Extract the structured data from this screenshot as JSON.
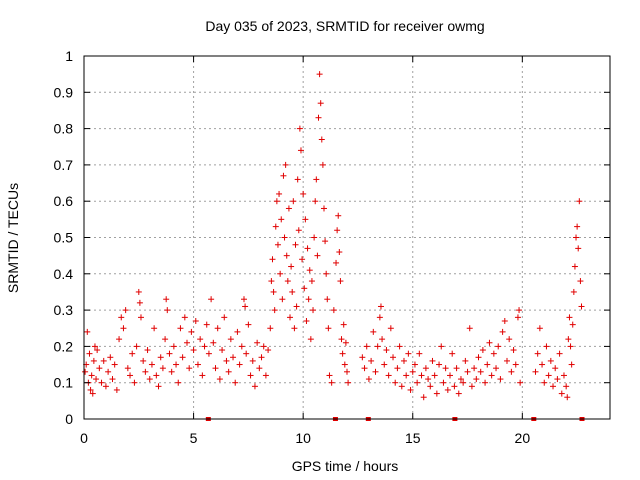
{
  "colors": {
    "series": "#e00000",
    "axis": "#000000",
    "grid": "#a0a0a0",
    "background": "#ffffff"
  },
  "chart_data": {
    "type": "scatter",
    "title": "Day 035 of 2023, SRMTID for receiver owmg",
    "xlabel": "GPS time / hours",
    "ylabel": "SRMTID / TECUs",
    "xlim": [
      0,
      24
    ],
    "ylim": [
      0,
      1
    ],
    "xticks": [
      0,
      5,
      10,
      15,
      20
    ],
    "xtick_labels": [
      "0",
      "5",
      "10",
      "15",
      "20"
    ],
    "yticks": [
      0,
      0.1,
      0.2,
      0.3,
      0.4,
      0.5,
      0.6,
      0.7,
      0.8,
      0.9,
      1
    ],
    "ytick_labels": [
      "0",
      "0.1",
      "0.2",
      "0.3",
      "0.4",
      "0.5",
      "0.6",
      "0.7",
      "0.8",
      "0.9",
      "1"
    ],
    "grid": true,
    "marker": "plus",
    "series": [
      {
        "name": "SRMTID",
        "points": [
          [
            0.05,
            0.13
          ],
          [
            0.1,
            0.15
          ],
          [
            0.15,
            0.24
          ],
          [
            0.2,
            0.1
          ],
          [
            0.25,
            0.18
          ],
          [
            0.3,
            0.08
          ],
          [
            0.35,
            0.12
          ],
          [
            0.4,
            0.07
          ],
          [
            0.45,
            0.16
          ],
          [
            0.5,
            0.2
          ],
          [
            0.55,
            0.11
          ],
          [
            0.6,
            0.19
          ],
          [
            0.7,
            0.14
          ],
          [
            0.8,
            0.1
          ],
          [
            0.9,
            0.16
          ],
          [
            1.0,
            0.09
          ],
          [
            1.1,
            0.13
          ],
          [
            1.2,
            0.17
          ],
          [
            1.3,
            0.11
          ],
          [
            1.4,
            0.15
          ],
          [
            1.5,
            0.08
          ],
          [
            1.6,
            0.22
          ],
          [
            1.7,
            0.28
          ],
          [
            1.8,
            0.25
          ],
          [
            1.9,
            0.3
          ],
          [
            2.0,
            0.14
          ],
          [
            2.1,
            0.12
          ],
          [
            2.2,
            0.18
          ],
          [
            2.3,
            0.1
          ],
          [
            2.4,
            0.2
          ],
          [
            2.5,
            0.35
          ],
          [
            2.55,
            0.32
          ],
          [
            2.6,
            0.28
          ],
          [
            2.7,
            0.16
          ],
          [
            2.8,
            0.13
          ],
          [
            2.9,
            0.19
          ],
          [
            3.0,
            0.11
          ],
          [
            3.1,
            0.15
          ],
          [
            3.2,
            0.25
          ],
          [
            3.3,
            0.12
          ],
          [
            3.4,
            0.09
          ],
          [
            3.5,
            0.17
          ],
          [
            3.6,
            0.14
          ],
          [
            3.7,
            0.22
          ],
          [
            3.75,
            0.33
          ],
          [
            3.8,
            0.3
          ],
          [
            3.9,
            0.18
          ],
          [
            4.0,
            0.13
          ],
          [
            4.1,
            0.2
          ],
          [
            4.2,
            0.15
          ],
          [
            4.3,
            0.1
          ],
          [
            4.4,
            0.25
          ],
          [
            4.5,
            0.17
          ],
          [
            4.6,
            0.28
          ],
          [
            4.7,
            0.21
          ],
          [
            4.8,
            0.14
          ],
          [
            4.9,
            0.24
          ],
          [
            5.0,
            0.19
          ],
          [
            5.1,
            0.27
          ],
          [
            5.2,
            0.15
          ],
          [
            5.3,
            0.22
          ],
          [
            5.4,
            0.12
          ],
          [
            5.5,
            0.2
          ],
          [
            5.6,
            0.26
          ],
          [
            5.7,
            0.18
          ],
          [
            5.8,
            0.33
          ],
          [
            5.9,
            0.21
          ],
          [
            6.0,
            0.14
          ],
          [
            6.1,
            0.25
          ],
          [
            6.2,
            0.11
          ],
          [
            6.3,
            0.19
          ],
          [
            6.4,
            0.28
          ],
          [
            6.5,
            0.16
          ],
          [
            6.6,
            0.13
          ],
          [
            6.7,
            0.22
          ],
          [
            6.8,
            0.17
          ],
          [
            6.9,
            0.1
          ],
          [
            7.0,
            0.24
          ],
          [
            7.1,
            0.15
          ],
          [
            7.2,
            0.2
          ],
          [
            7.3,
            0.33
          ],
          [
            7.35,
            0.31
          ],
          [
            7.4,
            0.18
          ],
          [
            7.5,
            0.26
          ],
          [
            7.6,
            0.12
          ],
          [
            7.7,
            0.16
          ],
          [
            7.8,
            0.09
          ],
          [
            7.9,
            0.21
          ],
          [
            8.0,
            0.14
          ],
          [
            8.1,
            0.17
          ],
          [
            8.2,
            0.2
          ],
          [
            8.3,
            0.12
          ],
          [
            8.4,
            0.19
          ],
          [
            8.5,
            0.25
          ],
          [
            8.55,
            0.38
          ],
          [
            8.6,
            0.44
          ],
          [
            8.65,
            0.35
          ],
          [
            8.7,
            0.3
          ],
          [
            8.75,
            0.53
          ],
          [
            8.8,
            0.6
          ],
          [
            8.85,
            0.48
          ],
          [
            8.9,
            0.62
          ],
          [
            8.95,
            0.4
          ],
          [
            9.0,
            0.55
          ],
          [
            9.05,
            0.33
          ],
          [
            9.1,
            0.67
          ],
          [
            9.15,
            0.5
          ],
          [
            9.2,
            0.7
          ],
          [
            9.25,
            0.45
          ],
          [
            9.3,
            0.38
          ],
          [
            9.35,
            0.58
          ],
          [
            9.4,
            0.28
          ],
          [
            9.45,
            0.42
          ],
          [
            9.5,
            0.35
          ],
          [
            9.55,
            0.6
          ],
          [
            9.6,
            0.25
          ],
          [
            9.65,
            0.48
          ],
          [
            9.7,
            0.31
          ],
          [
            9.75,
            0.66
          ],
          [
            9.8,
            0.52
          ],
          [
            9.85,
            0.8
          ],
          [
            9.9,
            0.74
          ],
          [
            9.95,
            0.44
          ],
          [
            10.0,
            0.62
          ],
          [
            10.05,
            0.36
          ],
          [
            10.1,
            0.55
          ],
          [
            10.15,
            0.27
          ],
          [
            10.2,
            0.47
          ],
          [
            10.25,
            0.33
          ],
          [
            10.3,
            0.41
          ],
          [
            10.35,
            0.22
          ],
          [
            10.4,
            0.38
          ],
          [
            10.45,
            0.3
          ],
          [
            10.5,
            0.5
          ],
          [
            10.55,
            0.6
          ],
          [
            10.6,
            0.66
          ],
          [
            10.65,
            0.45
          ],
          [
            10.7,
            0.83
          ],
          [
            10.75,
            0.95
          ],
          [
            10.8,
            0.87
          ],
          [
            10.85,
            0.77
          ],
          [
            10.9,
            0.7
          ],
          [
            10.95,
            0.58
          ],
          [
            11.0,
            0.49
          ],
          [
            11.05,
            0.4
          ],
          [
            11.1,
            0.33
          ],
          [
            11.15,
            0.25
          ],
          [
            11.2,
            0.12
          ],
          [
            11.3,
            0.1
          ],
          [
            11.4,
            0.3
          ],
          [
            11.5,
            0.43
          ],
          [
            11.55,
            0.52
          ],
          [
            11.6,
            0.56
          ],
          [
            11.65,
            0.46
          ],
          [
            11.7,
            0.38
          ],
          [
            11.75,
            0.22
          ],
          [
            11.8,
            0.18
          ],
          [
            11.85,
            0.26
          ],
          [
            11.9,
            0.15
          ],
          [
            11.95,
            0.21
          ],
          [
            12.0,
            0.13
          ],
          [
            12.05,
            0.1
          ],
          [
            12.7,
            0.17
          ],
          [
            12.8,
            0.14
          ],
          [
            12.9,
            0.2
          ],
          [
            13.0,
            0.11
          ],
          [
            13.1,
            0.16
          ],
          [
            13.2,
            0.24
          ],
          [
            13.3,
            0.13
          ],
          [
            13.4,
            0.2
          ],
          [
            13.5,
            0.28
          ],
          [
            13.55,
            0.31
          ],
          [
            13.6,
            0.22
          ],
          [
            13.7,
            0.15
          ],
          [
            13.8,
            0.19
          ],
          [
            13.9,
            0.12
          ],
          [
            14.0,
            0.25
          ],
          [
            14.1,
            0.17
          ],
          [
            14.2,
            0.1
          ],
          [
            14.3,
            0.14
          ],
          [
            14.4,
            0.2
          ],
          [
            14.5,
            0.09
          ],
          [
            14.6,
            0.16
          ],
          [
            14.7,
            0.12
          ],
          [
            14.8,
            0.18
          ],
          [
            14.9,
            0.08
          ],
          [
            15.0,
            0.13
          ],
          [
            15.1,
            0.15
          ],
          [
            15.2,
            0.1
          ],
          [
            15.3,
            0.18
          ],
          [
            15.4,
            0.12
          ],
          [
            15.5,
            0.06
          ],
          [
            15.6,
            0.14
          ],
          [
            15.7,
            0.11
          ],
          [
            15.8,
            0.09
          ],
          [
            15.9,
            0.16
          ],
          [
            16.0,
            0.12
          ],
          [
            16.1,
            0.07
          ],
          [
            16.2,
            0.15
          ],
          [
            16.3,
            0.2
          ],
          [
            16.4,
            0.1
          ],
          [
            16.5,
            0.14
          ],
          [
            16.6,
            0.08
          ],
          [
            16.7,
            0.12
          ],
          [
            16.8,
            0.18
          ],
          [
            16.9,
            0.09
          ],
          [
            17.0,
            0.14
          ],
          [
            17.1,
            0.07
          ],
          [
            17.2,
            0.11
          ],
          [
            17.3,
            0.1
          ],
          [
            17.4,
            0.16
          ],
          [
            17.5,
            0.13
          ],
          [
            17.6,
            0.25
          ],
          [
            17.7,
            0.09
          ],
          [
            17.8,
            0.14
          ],
          [
            17.9,
            0.11
          ],
          [
            18.0,
            0.17
          ],
          [
            18.1,
            0.13
          ],
          [
            18.2,
            0.19
          ],
          [
            18.3,
            0.1
          ],
          [
            18.4,
            0.15
          ],
          [
            18.5,
            0.21
          ],
          [
            18.6,
            0.12
          ],
          [
            18.7,
            0.18
          ],
          [
            18.8,
            0.14
          ],
          [
            18.9,
            0.2
          ],
          [
            19.0,
            0.11
          ],
          [
            19.1,
            0.24
          ],
          [
            19.2,
            0.27
          ],
          [
            19.3,
            0.16
          ],
          [
            19.4,
            0.22
          ],
          [
            19.5,
            0.13
          ],
          [
            19.6,
            0.19
          ],
          [
            19.7,
            0.15
          ],
          [
            19.8,
            0.28
          ],
          [
            19.85,
            0.3
          ],
          [
            19.9,
            0.1
          ],
          [
            20.6,
            0.13
          ],
          [
            20.7,
            0.18
          ],
          [
            20.8,
            0.25
          ],
          [
            20.9,
            0.15
          ],
          [
            21.0,
            0.1
          ],
          [
            21.1,
            0.2
          ],
          [
            21.2,
            0.12
          ],
          [
            21.3,
            0.16
          ],
          [
            21.4,
            0.09
          ],
          [
            21.5,
            0.14
          ],
          [
            21.6,
            0.11
          ],
          [
            21.7,
            0.18
          ],
          [
            21.8,
            0.07
          ],
          [
            21.9,
            0.12
          ],
          [
            22.0,
            0.09
          ],
          [
            22.05,
            0.06
          ],
          [
            22.1,
            0.22
          ],
          [
            22.15,
            0.28
          ],
          [
            22.2,
            0.2
          ],
          [
            22.25,
            0.15
          ],
          [
            22.3,
            0.26
          ],
          [
            22.35,
            0.35
          ],
          [
            22.4,
            0.42
          ],
          [
            22.45,
            0.5
          ],
          [
            22.5,
            0.53
          ],
          [
            22.55,
            0.47
          ],
          [
            22.6,
            0.6
          ],
          [
            22.65,
            0.38
          ],
          [
            22.7,
            0.31
          ]
        ],
        "zero_points": [
          5.65,
          11.45,
          12.95,
          16.9,
          20.5,
          22.7
        ]
      }
    ]
  }
}
